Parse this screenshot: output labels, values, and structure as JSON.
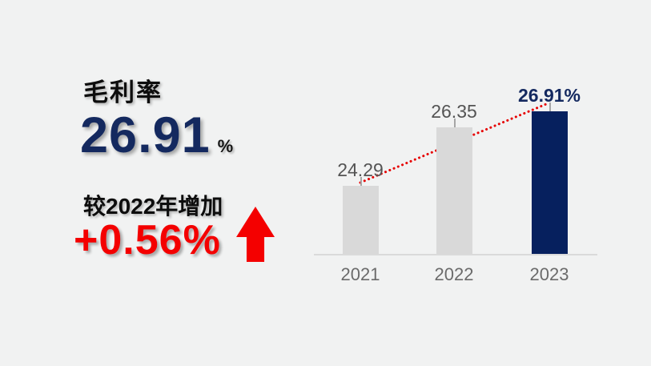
{
  "slide": {
    "background": "#f1f2f2"
  },
  "colors": {
    "navy_text": "#14295f",
    "bar_navy": "#06205e",
    "bar_gray": "#d9d9d9",
    "accent_red": "#f40000",
    "trend_red": "#e60000",
    "value_label_gray": "#545454",
    "axis_label_gray": "#6b6b6b",
    "baseline_gray": "#dadada",
    "tick_gray": "#a6a6a6"
  },
  "headline": {
    "title": "毛利率",
    "value": "26.91",
    "unit": "%"
  },
  "delta": {
    "label": "较2022年增加",
    "value": "+0.56%",
    "arrow_icon": "up-arrow"
  },
  "chart_data": {
    "type": "bar",
    "title": "",
    "xlabel": "",
    "ylabel": "",
    "categories": [
      "2021",
      "2022",
      "2023"
    ],
    "values": [
      24.29,
      26.35,
      26.91
    ],
    "value_labels": [
      "24.29",
      "26.35",
      "26.91%"
    ],
    "highlight_index": 2,
    "ylim": [
      21.9,
      27.4
    ],
    "grid": false,
    "legend": false,
    "trend_line": {
      "style": "dotted",
      "color": "#e60000",
      "from": {
        "category": "2021",
        "value": 24.29
      },
      "to": {
        "category": "2023",
        "value": 26.91
      }
    }
  }
}
